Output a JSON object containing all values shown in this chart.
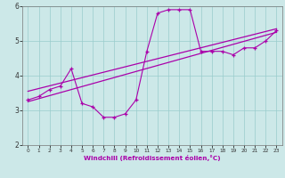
{
  "xlabel": "Windchill (Refroidissement éolien,°C)",
  "bg_color": "#cce8e8",
  "line_color": "#aa00aa",
  "grid_color": "#99cccc",
  "x_main": [
    0,
    1,
    2,
    3,
    4,
    5,
    6,
    7,
    8,
    9,
    10,
    11,
    12,
    13,
    14,
    15,
    16,
    17,
    18,
    19,
    20,
    21,
    22,
    23
  ],
  "y_main": [
    3.3,
    3.4,
    3.6,
    3.7,
    4.2,
    3.2,
    3.1,
    2.8,
    2.8,
    2.9,
    3.3,
    4.7,
    5.8,
    5.9,
    5.9,
    5.9,
    4.7,
    4.7,
    4.7,
    4.6,
    4.8,
    4.8,
    5.0,
    5.3
  ],
  "reg_line1": [
    [
      0,
      3.25
    ],
    [
      23,
      5.25
    ]
  ],
  "reg_line2": [
    [
      0,
      3.55
    ],
    [
      23,
      5.35
    ]
  ],
  "ylim": [
    2.0,
    6.0
  ],
  "xlim": [
    -0.5,
    23.5
  ],
  "yticks": [
    2,
    3,
    4,
    5,
    6
  ],
  "xticks": [
    0,
    1,
    2,
    3,
    4,
    5,
    6,
    7,
    8,
    9,
    10,
    11,
    12,
    13,
    14,
    15,
    16,
    17,
    18,
    19,
    20,
    21,
    22,
    23
  ]
}
